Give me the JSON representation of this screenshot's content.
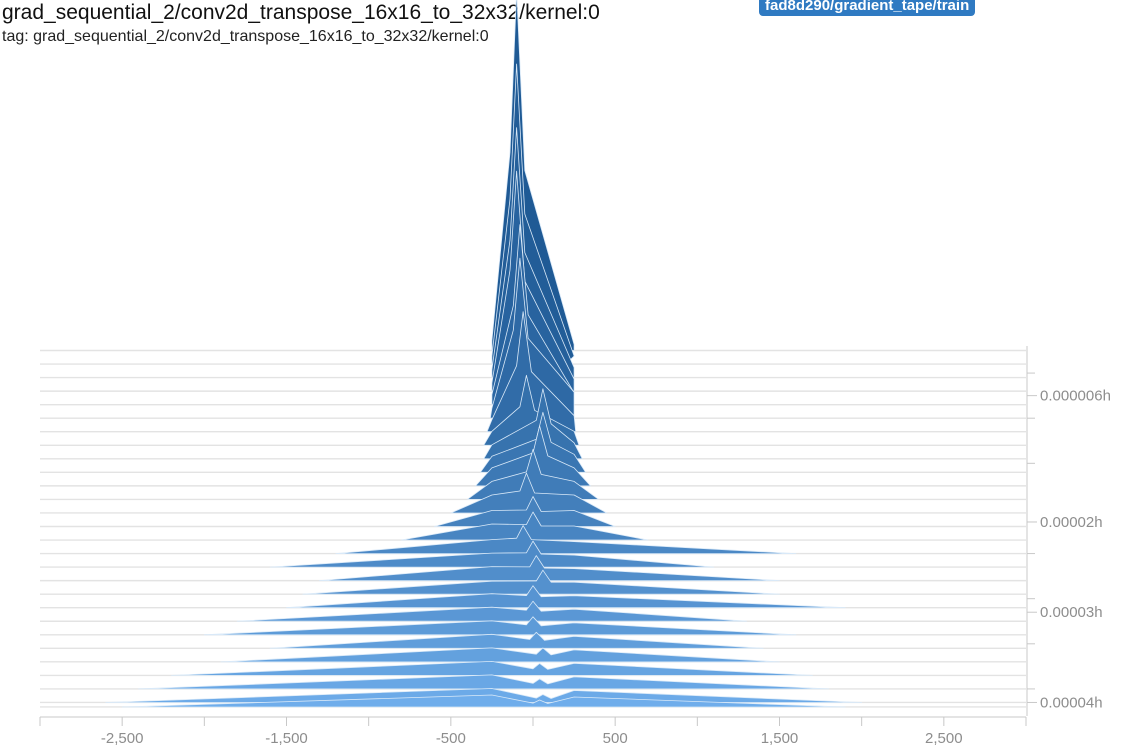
{
  "header": {
    "title": "grad_sequential_2/conv2d_transpose_16x16_to_32x32/kernel:0",
    "tag": "tag: grad_sequential_2/conv2d_transpose_16x16_to_32x32/kernel:0",
    "run": "fad8d290/gradient_tape/train"
  },
  "chart_data": {
    "type": "area",
    "mode": "offset histogram",
    "x_ticks": [
      "-2,500",
      "-1,500",
      "-500",
      "500",
      "1,500",
      "2,500"
    ],
    "x_tick_values": [
      -2500,
      -1500,
      -500,
      500,
      1500,
      2500
    ],
    "xlim": [
      -3000,
      3000
    ],
    "y_ticks": [
      "0.000006h",
      "0.00002h",
      "0.00003h",
      "0.00004h"
    ],
    "y_tick_values": [
      6e-06,
      2e-05,
      3e-05,
      4e-05
    ],
    "ylim": [
      5e-07,
      4.15e-05
    ],
    "colors": {
      "oldest": "#1f5a95",
      "newest": "#6fadeb",
      "outline": "#d9e9f8"
    },
    "histograms": [
      {
        "t": 1e-06,
        "peak": [
          -100,
          360
        ],
        "left": -250,
        "right": 250,
        "lh": 10,
        "rh": 6
      },
      {
        "t": 2.5e-06,
        "peak": [
          -100,
          300
        ],
        "left": -250,
        "right": 200,
        "lh": 8,
        "rh": 8
      },
      {
        "t": 4e-06,
        "peak": [
          -100,
          250
        ],
        "left": -250,
        "right": 250,
        "lh": 8,
        "rh": 10
      },
      {
        "t": 5.5e-06,
        "peak": [
          -100,
          220
        ],
        "left": -250,
        "right": 250,
        "lh": 8,
        "rh": 12
      },
      {
        "t": 7e-06,
        "peak": [
          -80,
          180
        ],
        "left": -250,
        "right": 250,
        "lh": 10,
        "rh": 12
      },
      {
        "t": 8.5e-06,
        "peak": [
          -80,
          160
        ],
        "left": -260,
        "right": 250,
        "lh": 10,
        "rh": 26
      },
      {
        "t": 1e-05,
        "peak": [
          -60,
          120
        ],
        "left": -280,
        "right": 260,
        "lh": 12,
        "rh": 16
      },
      {
        "t": 1.15e-05,
        "peak": [
          -40,
          70
        ],
        "left": -300,
        "right": 280,
        "lh": 14,
        "rh": 14
      },
      {
        "t": 1.3e-05,
        "peak": [
          60,
          70
        ],
        "left": -300,
        "right": 300,
        "lh": 14,
        "rh": 16
      },
      {
        "t": 1.45e-05,
        "peak": [
          60,
          60
        ],
        "left": -320,
        "right": 320,
        "lh": 16,
        "rh": 18
      },
      {
        "t": 1.6e-05,
        "peak": [
          40,
          60
        ],
        "left": -350,
        "right": 350,
        "lh": 18,
        "rh": 18
      },
      {
        "t": 1.75e-05,
        "peak": [
          0,
          50
        ],
        "left": -400,
        "right": 400,
        "lh": 18,
        "rh": 18
      },
      {
        "t": 1.9e-05,
        "peak": [
          -40,
          40
        ],
        "left": -500,
        "right": 450,
        "lh": 18,
        "rh": 18
      },
      {
        "t": 2.05e-05,
        "peak": [
          0,
          30
        ],
        "left": -600,
        "right": 500,
        "lh": 16,
        "rh": 16
      },
      {
        "t": 2.2e-05,
        "peak": [
          0,
          28
        ],
        "left": -800,
        "right": 700,
        "lh": 16,
        "rh": 14
      },
      {
        "t": 2.35e-05,
        "peak": [
          -60,
          28
        ],
        "left": -1200,
        "right": 1600,
        "lh": 14,
        "rh": 12
      },
      {
        "t": 2.5e-05,
        "peak": [
          0,
          26
        ],
        "left": -1600,
        "right": 1100,
        "lh": 14,
        "rh": 12
      },
      {
        "t": 2.65e-05,
        "peak": [
          20,
          25
        ],
        "left": -1300,
        "right": 1500,
        "lh": 14,
        "rh": 12
      },
      {
        "t": 2.8e-05,
        "peak": [
          60,
          24
        ],
        "left": -1400,
        "right": 1500,
        "lh": 13,
        "rh": 12
      },
      {
        "t": 2.95e-05,
        "peak": [
          0,
          22
        ],
        "left": -1500,
        "right": 1900,
        "lh": 14,
        "rh": 12
      },
      {
        "t": 3.1e-05,
        "peak": [
          0,
          20
        ],
        "left": -1800,
        "right": 1300,
        "lh": 14,
        "rh": 12
      },
      {
        "t": 3.25e-05,
        "peak": [
          0,
          18
        ],
        "left": -2000,
        "right": 1600,
        "lh": 14,
        "rh": 12
      },
      {
        "t": 3.4e-05,
        "peak": [
          20,
          16
        ],
        "left": -1600,
        "right": 1400,
        "lh": 14,
        "rh": 12
      },
      {
        "t": 3.55e-05,
        "peak": [
          60,
          14
        ],
        "left": -1900,
        "right": 1500,
        "lh": 14,
        "rh": 12
      },
      {
        "t": 3.7e-05,
        "peak": [
          40,
          12
        ],
        "left": -2200,
        "right": 1700,
        "lh": 14,
        "rh": 12
      },
      {
        "t": 3.85e-05,
        "peak": [
          40,
          10
        ],
        "left": -2400,
        "right": 1800,
        "lh": 14,
        "rh": 12
      },
      {
        "t": 4e-05,
        "peak": [
          60,
          8
        ],
        "left": -2600,
        "right": 2000,
        "lh": 14,
        "rh": 12
      },
      {
        "t": 4.05e-05,
        "peak": [
          40,
          7
        ],
        "left": -2500,
        "right": 1900,
        "lh": 12,
        "rh": 10
      }
    ],
    "center_peak": [
      -100,
      440
    ]
  }
}
